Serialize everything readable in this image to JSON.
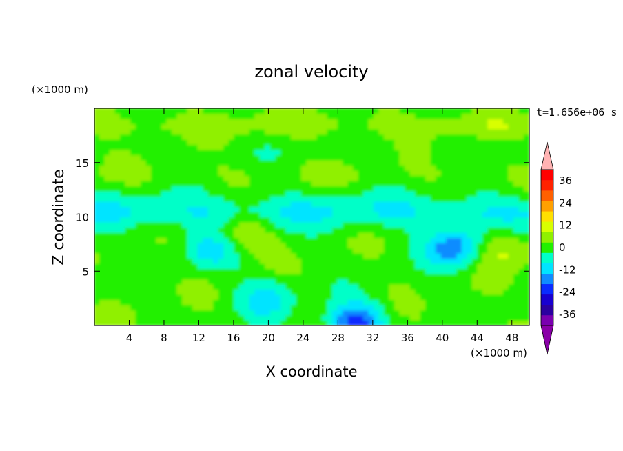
{
  "chart_data": {
    "type": "heatmap",
    "title": "zonal velocity",
    "xlabel": "X coordinate",
    "ylabel": "Z coordinate",
    "x_unit": "(×1000 m)",
    "y_unit": "(×1000 m)",
    "time_label": "t=1.656e+06 s",
    "xlim": [
      0,
      50
    ],
    "ylim": [
      0,
      20
    ],
    "x_ticks": [
      4,
      8,
      12,
      16,
      20,
      24,
      28,
      32,
      36,
      40,
      44,
      48
    ],
    "y_ticks": [
      5,
      10,
      15
    ],
    "colorbar": {
      "levels": [
        -42,
        -36,
        -30,
        -24,
        -18,
        -12,
        -6,
        0,
        6,
        12,
        18,
        24,
        30,
        36,
        42
      ],
      "tick_labels": [
        "36",
        "24",
        "12",
        "0",
        "-12",
        "-24",
        "-36"
      ],
      "tick_values": [
        36,
        24,
        12,
        0,
        -12,
        -24,
        -36
      ],
      "colors": [
        "#7a00b0",
        "#2a00a0",
        "#1800d0",
        "#0a2cff",
        "#0f8cff",
        "#00e4ff",
        "#00ffc8",
        "#22f000",
        "#90f000",
        "#d8ff00",
        "#ffe000",
        "#ffa000",
        "#ff6000",
        "#ff2200",
        "#ff0000"
      ],
      "extend": "both",
      "over_color": "#ffb3b3",
      "under_color": "#8a00a8"
    },
    "features": [
      {
        "kind": "band",
        "z_range": [
          17.5,
          19.5
        ],
        "value": 10
      },
      {
        "kind": "band",
        "z_range": [
          15,
          17
        ],
        "value": 3
      },
      {
        "kind": "band",
        "z_range": [
          13,
          15
        ],
        "value": 6
      },
      {
        "kind": "band",
        "z_range": [
          9,
          12
        ],
        "value": -8
      },
      {
        "kind": "blob",
        "x": 41.5,
        "z": 7.2,
        "value": -20
      },
      {
        "kind": "blob",
        "x": 30,
        "z": 0.3,
        "value": -25
      },
      {
        "kind": "blob",
        "x": 13.5,
        "z": 7,
        "value": -12
      },
      {
        "kind": "blob",
        "x": 20,
        "z": 2.5,
        "value": -12
      },
      {
        "kind": "blob",
        "x": 17,
        "z": 8.5,
        "value": 10
      },
      {
        "kind": "blob",
        "x": 47,
        "z": 7,
        "value": 10
      }
    ]
  }
}
